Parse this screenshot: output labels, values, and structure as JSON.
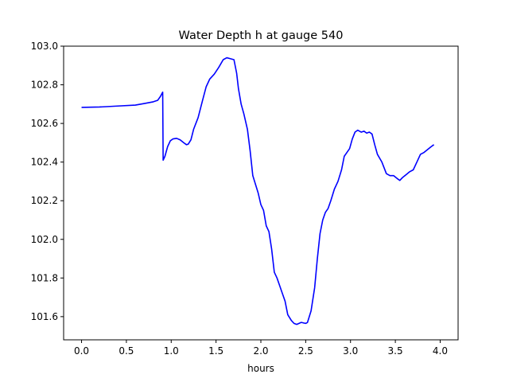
{
  "chart_data": {
    "type": "line",
    "title": "Water Depth h at gauge 540",
    "xlabel": "hours",
    "ylabel": "",
    "xlim": [
      -0.2,
      4.2
    ],
    "ylim": [
      101.48,
      103.0
    ],
    "xticks": [
      0.0,
      0.5,
      1.0,
      1.5,
      2.0,
      2.5,
      3.0,
      3.5,
      4.0
    ],
    "xtick_labels": [
      "0.0",
      "0.5",
      "1.0",
      "1.5",
      "2.0",
      "2.5",
      "3.0",
      "3.5",
      "4.0"
    ],
    "yticks": [
      101.6,
      101.8,
      102.0,
      102.2,
      102.4,
      102.6,
      102.8,
      103.0
    ],
    "ytick_labels": [
      "101.6",
      "101.8",
      "102.0",
      "102.2",
      "102.4",
      "102.6",
      "102.8",
      "103.0"
    ],
    "grid": false,
    "series": [
      {
        "color": "#0000ff",
        "points": [
          [
            0.0,
            102.683
          ],
          [
            0.2,
            102.685
          ],
          [
            0.4,
            102.69
          ],
          [
            0.6,
            102.695
          ],
          [
            0.7,
            102.703
          ],
          [
            0.8,
            102.712
          ],
          [
            0.85,
            102.72
          ],
          [
            0.88,
            102.74
          ],
          [
            0.905,
            102.762
          ],
          [
            0.91,
            102.41
          ],
          [
            0.93,
            102.43
          ],
          [
            0.96,
            102.48
          ],
          [
            0.99,
            102.51
          ],
          [
            1.02,
            102.52
          ],
          [
            1.06,
            102.523
          ],
          [
            1.1,
            102.515
          ],
          [
            1.14,
            102.5
          ],
          [
            1.17,
            102.49
          ],
          [
            1.19,
            102.493
          ],
          [
            1.22,
            102.515
          ],
          [
            1.25,
            102.57
          ],
          [
            1.3,
            102.63
          ],
          [
            1.35,
            102.72
          ],
          [
            1.39,
            102.79
          ],
          [
            1.43,
            102.83
          ],
          [
            1.48,
            102.855
          ],
          [
            1.53,
            102.89
          ],
          [
            1.58,
            102.93
          ],
          [
            1.62,
            102.94
          ],
          [
            1.66,
            102.935
          ],
          [
            1.7,
            102.93
          ],
          [
            1.73,
            102.86
          ],
          [
            1.75,
            102.78
          ],
          [
            1.78,
            102.7
          ],
          [
            1.81,
            102.65
          ],
          [
            1.85,
            102.57
          ],
          [
            1.88,
            102.46
          ],
          [
            1.91,
            102.33
          ],
          [
            1.94,
            102.285
          ],
          [
            1.97,
            102.24
          ],
          [
            2.0,
            102.18
          ],
          [
            2.03,
            102.15
          ],
          [
            2.06,
            102.07
          ],
          [
            2.09,
            102.04
          ],
          [
            2.12,
            101.95
          ],
          [
            2.15,
            101.83
          ],
          [
            2.18,
            101.8
          ],
          [
            2.21,
            101.76
          ],
          [
            2.24,
            101.72
          ],
          [
            2.27,
            101.68
          ],
          [
            2.3,
            101.61
          ],
          [
            2.34,
            101.58
          ],
          [
            2.37,
            101.565
          ],
          [
            2.4,
            101.56
          ],
          [
            2.45,
            101.57
          ],
          [
            2.5,
            101.565
          ],
          [
            2.52,
            101.57
          ],
          [
            2.56,
            101.63
          ],
          [
            2.6,
            101.75
          ],
          [
            2.63,
            101.9
          ],
          [
            2.66,
            102.03
          ],
          [
            2.69,
            102.1
          ],
          [
            2.72,
            102.14
          ],
          [
            2.75,
            102.16
          ],
          [
            2.78,
            102.2
          ],
          [
            2.82,
            102.26
          ],
          [
            2.86,
            102.3
          ],
          [
            2.9,
            102.36
          ],
          [
            2.93,
            102.43
          ],
          [
            2.96,
            102.45
          ],
          [
            2.99,
            102.47
          ],
          [
            3.02,
            102.52
          ],
          [
            3.05,
            102.555
          ],
          [
            3.08,
            102.565
          ],
          [
            3.12,
            102.555
          ],
          [
            3.15,
            102.56
          ],
          [
            3.18,
            102.55
          ],
          [
            3.21,
            102.555
          ],
          [
            3.24,
            102.545
          ],
          [
            3.27,
            102.49
          ],
          [
            3.3,
            102.44
          ],
          [
            3.35,
            102.4
          ],
          [
            3.4,
            102.34
          ],
          [
            3.44,
            102.33
          ],
          [
            3.48,
            102.33
          ],
          [
            3.52,
            102.315
          ],
          [
            3.55,
            102.305
          ],
          [
            3.58,
            102.32
          ],
          [
            3.62,
            102.335
          ],
          [
            3.66,
            102.35
          ],
          [
            3.7,
            102.36
          ],
          [
            3.74,
            102.4
          ],
          [
            3.78,
            102.44
          ],
          [
            3.82,
            102.45
          ],
          [
            3.86,
            102.465
          ],
          [
            3.9,
            102.48
          ],
          [
            3.93,
            102.49
          ]
        ]
      }
    ]
  }
}
